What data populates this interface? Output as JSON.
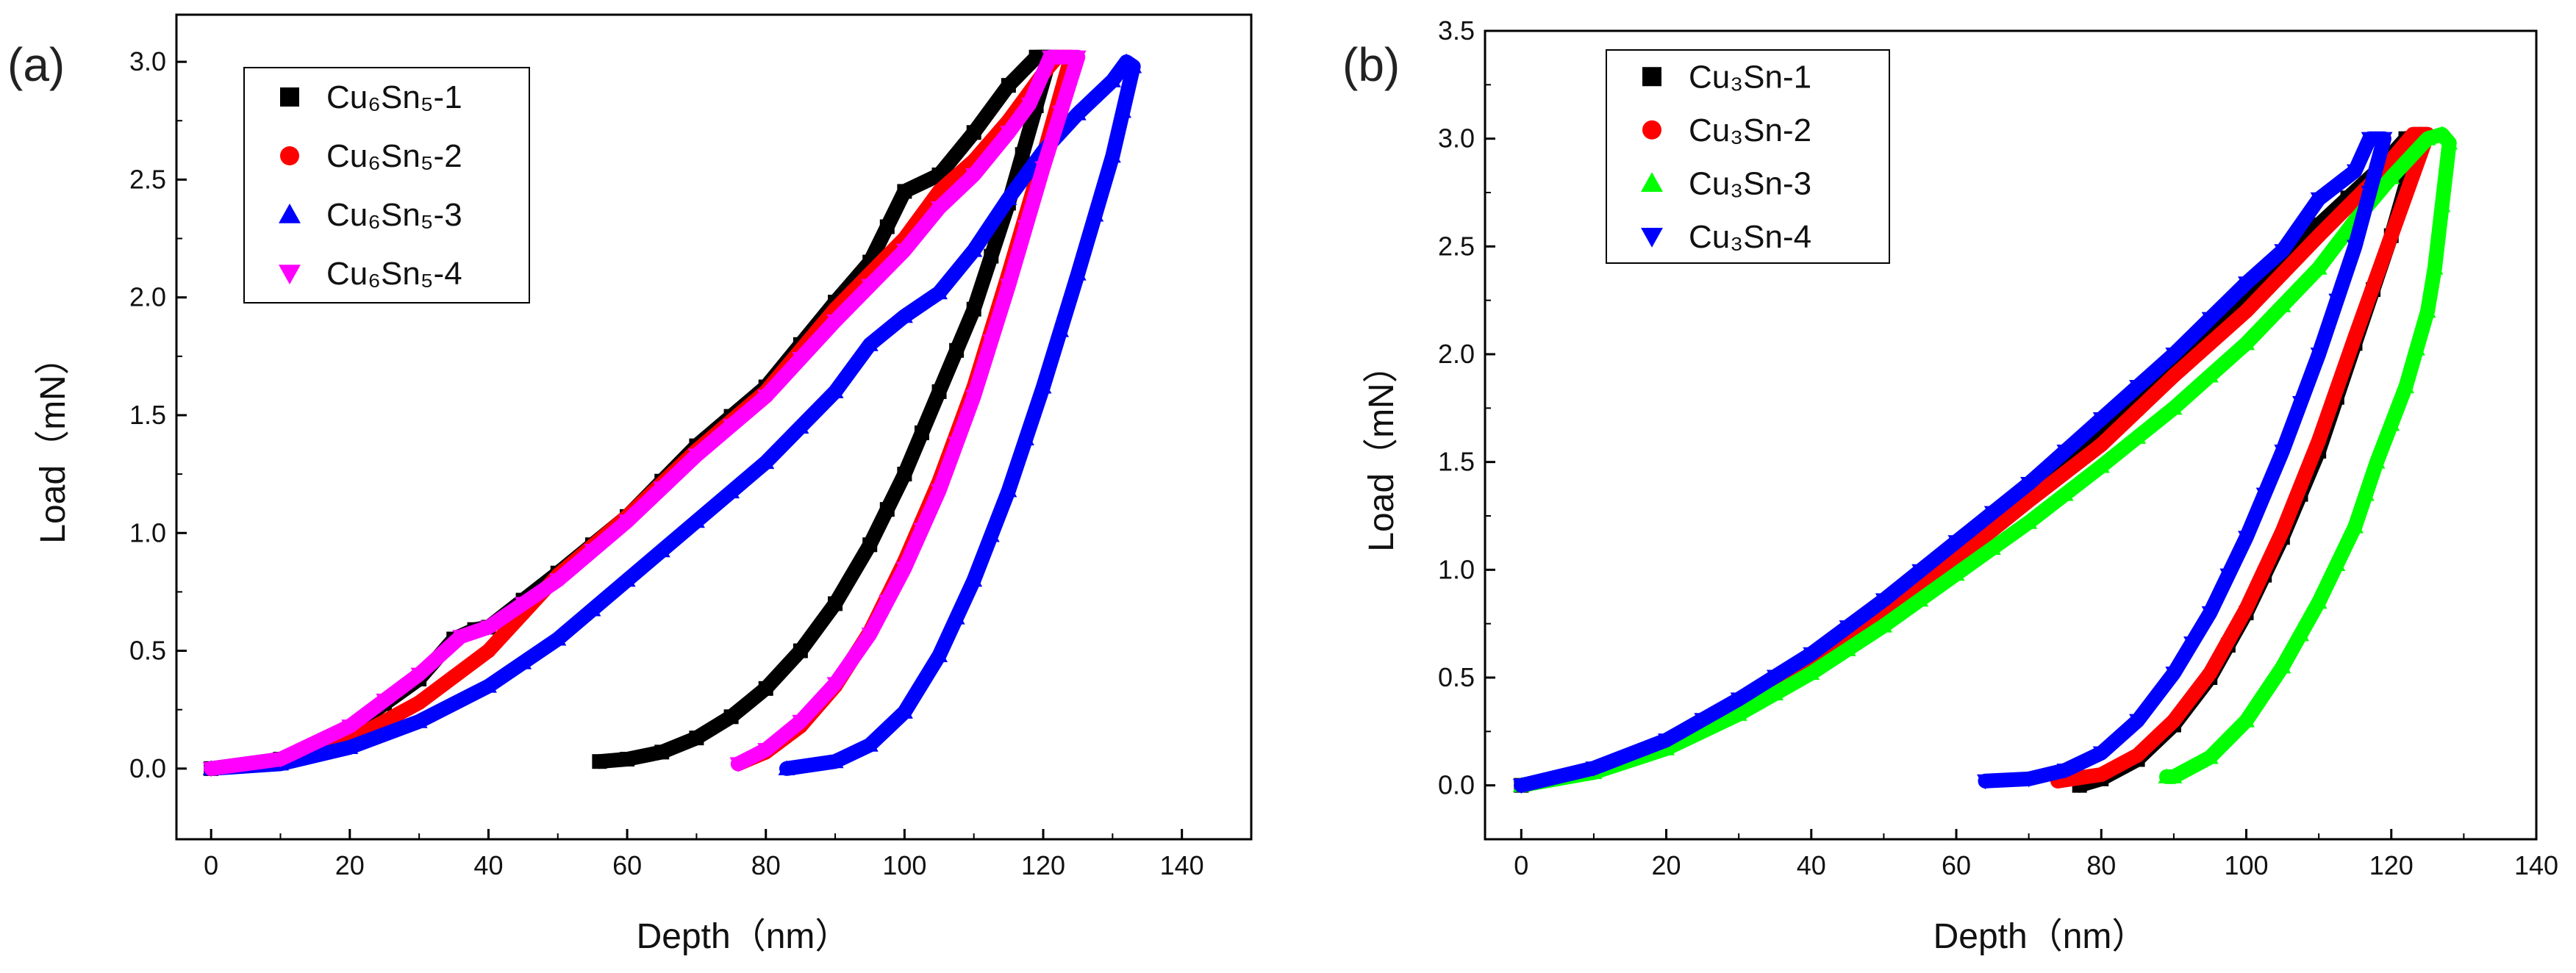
{
  "chart_data": [
    {
      "type": "line",
      "panel_label": "(a)",
      "xlabel": "Depth（nm）",
      "ylabel": "Load（mN）",
      "xlim": [
        -5,
        150
      ],
      "ylim": [
        -0.3,
        3.2
      ],
      "xticks": [
        0,
        20,
        40,
        60,
        80,
        100,
        120,
        140
      ],
      "yticks": [
        0.0,
        0.5,
        1.0,
        1.5,
        2.0,
        2.5,
        3.0
      ],
      "ytick_labels": [
        "0.0",
        "0.5",
        "1.0",
        "1.5",
        "2.0",
        "2.5",
        "3.0"
      ],
      "legend_position": "top-left",
      "series": [
        {
          "name": "Cu₆Sn₅-1",
          "color": "#000000",
          "marker": "square",
          "loading": [
            [
              0,
              0
            ],
            [
              10,
              0.04
            ],
            [
              20,
              0.17
            ],
            [
              30,
              0.38
            ],
            [
              35,
              0.55
            ],
            [
              38,
              0.59
            ],
            [
              40,
              0.6
            ],
            [
              50,
              0.83
            ],
            [
              60,
              1.07
            ],
            [
              70,
              1.37
            ],
            [
              80,
              1.62
            ],
            [
              90,
              1.98
            ],
            [
              95,
              2.15
            ],
            [
              100,
              2.45
            ],
            [
              105,
              2.52
            ],
            [
              110,
              2.7
            ],
            [
              115,
              2.9
            ],
            [
              119,
              3.02
            ]
          ],
          "hold": [
            [
              119,
              3.02
            ],
            [
              121,
              3.02
            ]
          ],
          "unloading": [
            [
              121,
              3.02
            ],
            [
              115,
              2.4
            ],
            [
              110,
              1.95
            ],
            [
              105,
              1.6
            ],
            [
              100,
              1.25
            ],
            [
              95,
              0.95
            ],
            [
              90,
              0.7
            ],
            [
              85,
              0.5
            ],
            [
              80,
              0.34
            ],
            [
              75,
              0.22
            ],
            [
              70,
              0.13
            ],
            [
              65,
              0.07
            ],
            [
              60,
              0.04
            ],
            [
              56,
              0.03
            ]
          ]
        },
        {
          "name": "Cu₆Sn₅-2",
          "color": "#ff0000",
          "marker": "circle",
          "loading": [
            [
              0,
              0
            ],
            [
              10,
              0.03
            ],
            [
              20,
              0.12
            ],
            [
              30,
              0.28
            ],
            [
              40,
              0.5
            ],
            [
              50,
              0.82
            ],
            [
              60,
              1.07
            ],
            [
              70,
              1.35
            ],
            [
              80,
              1.6
            ],
            [
              90,
              1.95
            ],
            [
              100,
              2.25
            ],
            [
              105,
              2.45
            ],
            [
              110,
              2.58
            ],
            [
              115,
              2.75
            ],
            [
              120,
              2.95
            ],
            [
              122,
              3.02
            ]
          ],
          "hold": [
            [
              122,
              3.02
            ],
            [
              124,
              3.02
            ]
          ],
          "unloading": [
            [
              124,
              3.02
            ],
            [
              120,
              2.6
            ],
            [
              115,
              2.1
            ],
            [
              110,
              1.62
            ],
            [
              105,
              1.22
            ],
            [
              100,
              0.88
            ],
            [
              95,
              0.58
            ],
            [
              90,
              0.35
            ],
            [
              85,
              0.18
            ],
            [
              80,
              0.07
            ],
            [
              76,
              0.02
            ]
          ]
        },
        {
          "name": "Cu₆Sn₅-3",
          "color": "#0000ff",
          "marker": "triangle-up",
          "loading": [
            [
              0,
              0
            ],
            [
              10,
              0.02
            ],
            [
              20,
              0.09
            ],
            [
              30,
              0.2
            ],
            [
              40,
              0.35
            ],
            [
              50,
              0.55
            ],
            [
              60,
              0.8
            ],
            [
              70,
              1.05
            ],
            [
              80,
              1.3
            ],
            [
              90,
              1.6
            ],
            [
              95,
              1.8
            ],
            [
              100,
              1.92
            ],
            [
              105,
              2.02
            ],
            [
              110,
              2.2
            ],
            [
              115,
              2.42
            ],
            [
              120,
              2.62
            ],
            [
              125,
              2.78
            ],
            [
              130,
              2.92
            ],
            [
              132,
              3.0
            ]
          ],
          "hold": [
            [
              132,
              3.0
            ],
            [
              133,
              2.98
            ]
          ],
          "unloading": [
            [
              133,
              2.98
            ],
            [
              130,
              2.6
            ],
            [
              125,
              2.1
            ],
            [
              120,
              1.62
            ],
            [
              115,
              1.18
            ],
            [
              110,
              0.8
            ],
            [
              105,
              0.48
            ],
            [
              100,
              0.24
            ],
            [
              95,
              0.1
            ],
            [
              90,
              0.03
            ],
            [
              83,
              0.0
            ]
          ]
        },
        {
          "name": "Cu₆Sn₅-4",
          "color": "#ff00ff",
          "marker": "triangle-down",
          "loading": [
            [
              0,
              0
            ],
            [
              10,
              0.04
            ],
            [
              20,
              0.18
            ],
            [
              30,
              0.4
            ],
            [
              36,
              0.56
            ],
            [
              40,
              0.6
            ],
            [
              50,
              0.8
            ],
            [
              60,
              1.05
            ],
            [
              70,
              1.33
            ],
            [
              80,
              1.58
            ],
            [
              90,
              1.9
            ],
            [
              100,
              2.2
            ],
            [
              105,
              2.38
            ],
            [
              110,
              2.52
            ],
            [
              115,
              2.7
            ],
            [
              118,
              2.82
            ],
            [
              121,
              3.02
            ]
          ],
          "hold": [
            [
              121,
              3.02
            ],
            [
              125,
              3.02
            ]
          ],
          "unloading": [
            [
              125,
              3.02
            ],
            [
              120,
              2.55
            ],
            [
              115,
              2.05
            ],
            [
              110,
              1.58
            ],
            [
              105,
              1.18
            ],
            [
              100,
              0.85
            ],
            [
              95,
              0.57
            ],
            [
              90,
              0.36
            ],
            [
              85,
              0.2
            ],
            [
              80,
              0.08
            ],
            [
              76,
              0.02
            ]
          ]
        }
      ]
    },
    {
      "type": "line",
      "panel_label": "(b)",
      "xlabel": "Depth（nm）",
      "ylabel": "Load（mN）",
      "xlim": [
        -5,
        140
      ],
      "ylim": [
        -0.25,
        3.5
      ],
      "xticks": [
        0,
        20,
        40,
        60,
        80,
        100,
        120,
        140
      ],
      "yticks": [
        0.0,
        0.5,
        1.0,
        1.5,
        2.0,
        2.5,
        3.0,
        3.5
      ],
      "ytick_labels": [
        "0.0",
        "0.5",
        "1.0",
        "1.5",
        "2.0",
        "2.5",
        "3.0",
        "3.5"
      ],
      "legend_position": "top-left",
      "series": [
        {
          "name": "Cu₃Sn-1",
          "color": "#000000",
          "marker": "square",
          "loading": [
            [
              0,
              0
            ],
            [
              10,
              0.07
            ],
            [
              20,
              0.2
            ],
            [
              30,
              0.37
            ],
            [
              40,
              0.58
            ],
            [
              50,
              0.82
            ],
            [
              60,
              1.07
            ],
            [
              70,
              1.35
            ],
            [
              80,
              1.63
            ],
            [
              90,
              1.95
            ],
            [
              100,
              2.27
            ],
            [
              110,
              2.6
            ],
            [
              118,
              2.85
            ],
            [
              122,
              3.0
            ]
          ],
          "hold": [
            [
              122,
              3.0
            ],
            [
              124,
              3.02
            ]
          ],
          "unloading": [
            [
              124,
              3.02
            ],
            [
              120,
              2.55
            ],
            [
              115,
              2.05
            ],
            [
              110,
              1.55
            ],
            [
              105,
              1.15
            ],
            [
              100,
              0.8
            ],
            [
              95,
              0.5
            ],
            [
              90,
              0.28
            ],
            [
              85,
              0.12
            ],
            [
              80,
              0.03
            ],
            [
              77,
              0.0
            ]
          ]
        },
        {
          "name": "Cu₃Sn-2",
          "color": "#ff0000",
          "marker": "circle",
          "loading": [
            [
              0,
              0
            ],
            [
              10,
              0.07
            ],
            [
              20,
              0.19
            ],
            [
              30,
              0.36
            ],
            [
              40,
              0.57
            ],
            [
              50,
              0.8
            ],
            [
              60,
              1.05
            ],
            [
              70,
              1.32
            ],
            [
              80,
              1.58
            ],
            [
              90,
              1.9
            ],
            [
              100,
              2.2
            ],
            [
              110,
              2.55
            ],
            [
              118,
              2.82
            ],
            [
              123,
              3.02
            ]
          ],
          "hold": [
            [
              123,
              3.02
            ],
            [
              125,
              3.02
            ]
          ],
          "unloading": [
            [
              125,
              3.02
            ],
            [
              120,
              2.55
            ],
            [
              115,
              2.08
            ],
            [
              110,
              1.6
            ],
            [
              105,
              1.18
            ],
            [
              100,
              0.82
            ],
            [
              95,
              0.52
            ],
            [
              90,
              0.3
            ],
            [
              85,
              0.14
            ],
            [
              80,
              0.05
            ],
            [
              74,
              0.02
            ]
          ]
        },
        {
          "name": "Cu₃Sn-3",
          "color": "#00ff00",
          "marker": "triangle-up",
          "loading": [
            [
              0,
              0
            ],
            [
              10,
              0.06
            ],
            [
              20,
              0.17
            ],
            [
              30,
              0.33
            ],
            [
              40,
              0.52
            ],
            [
              50,
              0.74
            ],
            [
              60,
              0.98
            ],
            [
              70,
              1.22
            ],
            [
              80,
              1.48
            ],
            [
              90,
              1.75
            ],
            [
              100,
              2.05
            ],
            [
              110,
              2.4
            ],
            [
              115,
              2.62
            ],
            [
              120,
              2.82
            ],
            [
              125,
              3.0
            ],
            [
              127,
              3.02
            ]
          ],
          "hold": [
            [
              127,
              3.02
            ],
            [
              128,
              2.98
            ]
          ],
          "unloading": [
            [
              128,
              2.98
            ],
            [
              126,
              2.4
            ],
            [
              125,
              2.2
            ],
            [
              122,
              1.85
            ],
            [
              118,
              1.5
            ],
            [
              115,
              1.2
            ],
            [
              110,
              0.85
            ],
            [
              105,
              0.55
            ],
            [
              100,
              0.3
            ],
            [
              95,
              0.13
            ],
            [
              90,
              0.04
            ],
            [
              89,
              0.04
            ]
          ]
        },
        {
          "name": "Cu₃Sn-4",
          "color": "#0000ff",
          "marker": "triangle-down",
          "loading": [
            [
              0,
              0
            ],
            [
              10,
              0.08
            ],
            [
              20,
              0.21
            ],
            [
              30,
              0.4
            ],
            [
              40,
              0.61
            ],
            [
              50,
              0.86
            ],
            [
              60,
              1.13
            ],
            [
              70,
              1.4
            ],
            [
              80,
              1.7
            ],
            [
              90,
              2.0
            ],
            [
              100,
              2.33
            ],
            [
              105,
              2.48
            ],
            [
              110,
              2.72
            ],
            [
              115,
              2.85
            ],
            [
              117,
              3.0
            ]
          ],
          "hold": [
            [
              117,
              3.0
            ],
            [
              119,
              3.0
            ]
          ],
          "unloading": [
            [
              119,
              3.0
            ],
            [
              115,
              2.5
            ],
            [
              110,
              2.0
            ],
            [
              105,
              1.55
            ],
            [
              100,
              1.15
            ],
            [
              95,
              0.8
            ],
            [
              90,
              0.52
            ],
            [
              85,
              0.3
            ],
            [
              80,
              0.15
            ],
            [
              75,
              0.07
            ],
            [
              70,
              0.03
            ],
            [
              64,
              0.02
            ]
          ]
        }
      ]
    }
  ]
}
